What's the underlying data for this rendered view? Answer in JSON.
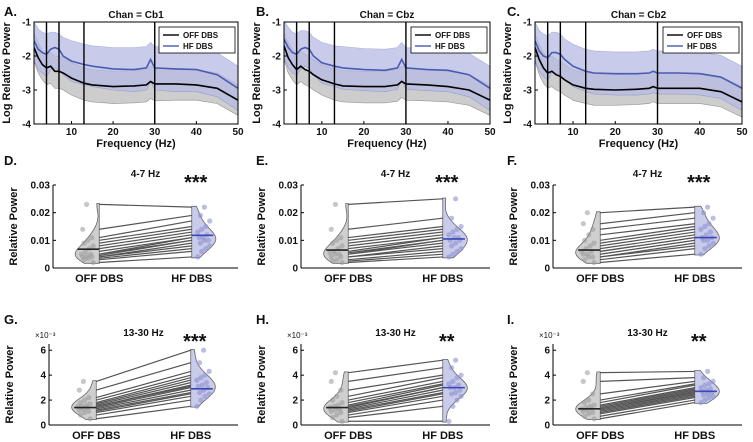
{
  "figure": {
    "panel_labels": [
      "A.",
      "B.",
      "C.",
      "D.",
      "E.",
      "F.",
      "G.",
      "H.",
      "I."
    ],
    "colors": {
      "off": "#000000",
      "hf": "#4a5bb0",
      "off_band": "#c8c8c8",
      "hf_band": "#b7b9e4",
      "off_violin": "#cfcfcf",
      "hf_violin": "#c9cbea",
      "pairline": "#555555"
    }
  },
  "chart_data": [
    {
      "panel": "A.",
      "type": "line",
      "title": "Chan = Cb1",
      "xlabel": "Frequency (Hz)",
      "ylabel": "Log Relative Power",
      "xlim": [
        1,
        50
      ],
      "ylim": [
        -4,
        -1
      ],
      "xticks": [
        10,
        20,
        30,
        40,
        50
      ],
      "yticks": [
        -1,
        -2,
        -3,
        -4
      ],
      "band_lines": [
        4,
        7,
        13,
        30
      ],
      "legend": [
        "OFF DBS",
        "HF DBS"
      ],
      "series": [
        {
          "name": "OFF DBS",
          "x": [
            1,
            2,
            3,
            4,
            5,
            6,
            7,
            8,
            10,
            13,
            15,
            20,
            25,
            28,
            29,
            30,
            35,
            40,
            45,
            50
          ],
          "mean": [
            -1.75,
            -2.05,
            -2.25,
            -2.35,
            -2.3,
            -2.45,
            -2.45,
            -2.5,
            -2.65,
            -2.8,
            -2.85,
            -2.9,
            -2.88,
            -2.85,
            -2.75,
            -2.82,
            -2.82,
            -2.85,
            -2.95,
            -3.3
          ],
          "upper": [
            -1.35,
            -1.6,
            -1.85,
            -1.95,
            -1.9,
            -2.0,
            -2.0,
            -2.05,
            -2.2,
            -2.35,
            -2.4,
            -2.45,
            -2.43,
            -2.4,
            -2.3,
            -2.35,
            -2.37,
            -2.4,
            -2.5,
            -2.85
          ],
          "lower": [
            -2.15,
            -2.5,
            -2.7,
            -2.85,
            -2.8,
            -2.95,
            -2.95,
            -3.0,
            -3.15,
            -3.3,
            -3.35,
            -3.4,
            -3.38,
            -3.35,
            -3.25,
            -3.32,
            -3.3,
            -3.3,
            -3.4,
            -3.75
          ]
        },
        {
          "name": "HF DBS",
          "x": [
            1,
            2,
            3,
            4,
            5,
            6,
            7,
            8,
            10,
            13,
            15,
            20,
            25,
            28,
            29,
            30,
            35,
            40,
            45,
            50
          ],
          "mean": [
            -1.55,
            -1.8,
            -1.9,
            -1.95,
            -1.8,
            -1.75,
            -1.8,
            -2.0,
            -2.15,
            -2.25,
            -2.3,
            -2.38,
            -2.4,
            -2.35,
            -2.1,
            -2.35,
            -2.38,
            -2.4,
            -2.55,
            -2.95
          ],
          "upper": [
            -1.0,
            -1.2,
            -1.3,
            -1.35,
            -1.3,
            -1.3,
            -1.35,
            -1.45,
            -1.55,
            -1.65,
            -1.7,
            -1.75,
            -1.75,
            -1.72,
            -1.6,
            -1.72,
            -1.72,
            -1.75,
            -1.9,
            -2.3
          ],
          "lower": [
            -2.1,
            -2.4,
            -2.5,
            -2.6,
            -2.4,
            -2.35,
            -2.4,
            -2.55,
            -2.75,
            -2.85,
            -2.9,
            -3.0,
            -3.05,
            -3.0,
            -2.75,
            -3.0,
            -3.05,
            -3.05,
            -3.2,
            -3.6
          ]
        }
      ]
    },
    {
      "panel": "B.",
      "type": "line",
      "title": "Chan = Cbz",
      "xlabel": "Frequency (Hz)",
      "ylabel": "Log Relative Power",
      "xlim": [
        1,
        50
      ],
      "ylim": [
        -4,
        -1
      ],
      "xticks": [
        10,
        20,
        30,
        40,
        50
      ],
      "yticks": [
        -1,
        -2,
        -3,
        -4
      ],
      "band_lines": [
        4,
        7,
        13,
        30
      ],
      "legend": [
        "OFF DBS",
        "HF DBS"
      ],
      "series": [
        {
          "name": "OFF DBS",
          "x": [
            1,
            2,
            3,
            4,
            5,
            6,
            7,
            8,
            10,
            13,
            15,
            20,
            25,
            28,
            29,
            30,
            35,
            40,
            45,
            50
          ],
          "mean": [
            -1.7,
            -2.05,
            -2.25,
            -2.4,
            -2.3,
            -2.4,
            -2.45,
            -2.55,
            -2.7,
            -2.82,
            -2.88,
            -2.9,
            -2.9,
            -2.85,
            -2.75,
            -2.82,
            -2.85,
            -2.9,
            -3.0,
            -3.3
          ],
          "upper": [
            -1.3,
            -1.6,
            -1.8,
            -1.95,
            -1.85,
            -1.95,
            -2.0,
            -2.1,
            -2.25,
            -2.37,
            -2.43,
            -2.45,
            -2.45,
            -2.4,
            -2.3,
            -2.37,
            -2.4,
            -2.45,
            -2.55,
            -2.85
          ],
          "lower": [
            -2.1,
            -2.5,
            -2.7,
            -2.85,
            -2.75,
            -2.85,
            -2.9,
            -3.0,
            -3.15,
            -3.3,
            -3.35,
            -3.38,
            -3.38,
            -3.33,
            -3.22,
            -3.3,
            -3.32,
            -3.35,
            -3.45,
            -3.75
          ]
        },
        {
          "name": "HF DBS",
          "x": [
            1,
            2,
            3,
            4,
            5,
            6,
            7,
            8,
            10,
            13,
            15,
            20,
            25,
            28,
            29,
            30,
            35,
            40,
            45,
            50
          ],
          "mean": [
            -1.5,
            -1.75,
            -1.9,
            -1.95,
            -1.8,
            -1.75,
            -1.8,
            -2.0,
            -2.2,
            -2.3,
            -2.35,
            -2.4,
            -2.42,
            -2.35,
            -2.1,
            -2.35,
            -2.4,
            -2.42,
            -2.55,
            -2.95
          ],
          "upper": [
            -0.95,
            -1.15,
            -1.3,
            -1.35,
            -1.25,
            -1.25,
            -1.3,
            -1.45,
            -1.6,
            -1.7,
            -1.72,
            -1.78,
            -1.8,
            -1.75,
            -1.6,
            -1.75,
            -1.78,
            -1.8,
            -1.92,
            -2.3
          ],
          "lower": [
            -2.05,
            -2.35,
            -2.5,
            -2.55,
            -2.4,
            -2.3,
            -2.35,
            -2.55,
            -2.8,
            -2.9,
            -2.98,
            -3.02,
            -3.05,
            -2.98,
            -2.7,
            -2.98,
            -3.02,
            -3.05,
            -3.2,
            -3.6
          ]
        }
      ]
    },
    {
      "panel": "C.",
      "type": "line",
      "title": "Chan = Cb2",
      "xlabel": "Frequency (Hz)",
      "ylabel": "Log Relative Power",
      "xlim": [
        1,
        50
      ],
      "ylim": [
        -4,
        -1
      ],
      "xticks": [
        10,
        20,
        30,
        40,
        50
      ],
      "yticks": [
        -1,
        -2,
        -3,
        -4
      ],
      "band_lines": [
        4,
        7,
        13,
        30
      ],
      "legend": [
        "OFF DBS",
        "HF DBS"
      ],
      "series": [
        {
          "name": "OFF DBS",
          "x": [
            1,
            2,
            3,
            4,
            5,
            6,
            7,
            8,
            10,
            13,
            15,
            20,
            25,
            28,
            29,
            30,
            35,
            40,
            45,
            50
          ],
          "mean": [
            -1.75,
            -2.1,
            -2.35,
            -2.5,
            -2.45,
            -2.55,
            -2.6,
            -2.7,
            -2.85,
            -2.95,
            -2.98,
            -3.0,
            -2.98,
            -2.95,
            -2.9,
            -2.95,
            -2.95,
            -2.95,
            -3.05,
            -3.35
          ],
          "upper": [
            -1.35,
            -1.65,
            -1.9,
            -2.05,
            -2.0,
            -2.1,
            -2.15,
            -2.25,
            -2.4,
            -2.5,
            -2.52,
            -2.55,
            -2.53,
            -2.5,
            -2.45,
            -2.5,
            -2.5,
            -2.5,
            -2.6,
            -2.9
          ],
          "lower": [
            -2.15,
            -2.55,
            -2.8,
            -2.95,
            -2.9,
            -3.0,
            -3.05,
            -3.15,
            -3.3,
            -3.4,
            -3.45,
            -3.45,
            -3.43,
            -3.4,
            -3.35,
            -3.4,
            -3.4,
            -3.4,
            -3.5,
            -3.8
          ]
        },
        {
          "name": "HF DBS",
          "x": [
            1,
            2,
            3,
            4,
            5,
            6,
            7,
            8,
            10,
            13,
            15,
            20,
            25,
            28,
            29,
            30,
            35,
            40,
            45,
            50
          ],
          "mean": [
            -1.55,
            -1.85,
            -2.0,
            -2.05,
            -1.9,
            -1.9,
            -1.95,
            -2.1,
            -2.3,
            -2.45,
            -2.5,
            -2.52,
            -2.52,
            -2.5,
            -2.45,
            -2.5,
            -2.5,
            -2.52,
            -2.62,
            -2.95
          ],
          "upper": [
            -1.0,
            -1.25,
            -1.35,
            -1.4,
            -1.3,
            -1.3,
            -1.35,
            -1.5,
            -1.65,
            -1.8,
            -1.85,
            -1.88,
            -1.88,
            -1.85,
            -1.8,
            -1.85,
            -1.85,
            -1.88,
            -1.98,
            -2.3
          ],
          "lower": [
            -2.1,
            -2.45,
            -2.6,
            -2.7,
            -2.5,
            -2.5,
            -2.55,
            -2.7,
            -2.9,
            -3.05,
            -3.12,
            -3.15,
            -3.15,
            -3.12,
            -3.08,
            -3.12,
            -3.12,
            -3.15,
            -3.25,
            -3.6
          ]
        }
      ]
    },
    {
      "panel": "D.",
      "type": "violin",
      "title": "4-7 Hz",
      "ylabel": "Relative Power",
      "categories": [
        "OFF DBS",
        "HF DBS"
      ],
      "ylim": [
        0,
        0.03
      ],
      "yticks": [
        0,
        0.01,
        0.02,
        0.03
      ],
      "ytick_labels": [
        "0",
        "0.01",
        "0.02",
        "0.03"
      ],
      "exponent": "",
      "significance": "***",
      "off": [
        0.002,
        0.003,
        0.0035,
        0.004,
        0.004,
        0.0045,
        0.005,
        0.005,
        0.006,
        0.007,
        0.008,
        0.009,
        0.01,
        0.011,
        0.014,
        0.023
      ],
      "hf": [
        0.004,
        0.006,
        0.007,
        0.008,
        0.009,
        0.01,
        0.01,
        0.011,
        0.011,
        0.012,
        0.013,
        0.014,
        0.015,
        0.017,
        0.019,
        0.022
      ],
      "off_mean": 0.0068,
      "hf_mean": 0.0118
    },
    {
      "panel": "E.",
      "type": "violin",
      "title": "4-7 Hz",
      "ylabel": "Relative Power",
      "categories": [
        "OFF DBS",
        "HF DBS"
      ],
      "ylim": [
        0,
        0.03
      ],
      "yticks": [
        0,
        0.01,
        0.02,
        0.03
      ],
      "ytick_labels": [
        "0",
        "0.01",
        "0.02",
        "0.03"
      ],
      "exponent": "",
      "significance": "***",
      "off": [
        0.002,
        0.0025,
        0.003,
        0.004,
        0.004,
        0.005,
        0.005,
        0.0055,
        0.006,
        0.007,
        0.008,
        0.009,
        0.01,
        0.011,
        0.014,
        0.023
      ],
      "hf": [
        0.004,
        0.005,
        0.006,
        0.007,
        0.008,
        0.009,
        0.01,
        0.01,
        0.011,
        0.011,
        0.012,
        0.013,
        0.014,
        0.015,
        0.018,
        0.025
      ],
      "off_mean": 0.0065,
      "hf_mean": 0.0105
    },
    {
      "panel": "F.",
      "type": "violin",
      "title": "4-7 Hz",
      "ylabel": "Relative Power",
      "categories": [
        "OFF DBS",
        "HF DBS"
      ],
      "ylim": [
        0,
        0.03
      ],
      "yticks": [
        0,
        0.01,
        0.02,
        0.03
      ],
      "ytick_labels": [
        "0",
        "0.01",
        "0.02",
        "0.03"
      ],
      "exponent": "",
      "significance": "***",
      "off": [
        0.002,
        0.003,
        0.004,
        0.004,
        0.005,
        0.005,
        0.006,
        0.006,
        0.007,
        0.008,
        0.009,
        0.01,
        0.012,
        0.014,
        0.016,
        0.02
      ],
      "hf": [
        0.005,
        0.007,
        0.008,
        0.009,
        0.01,
        0.01,
        0.011,
        0.011,
        0.012,
        0.013,
        0.014,
        0.015,
        0.016,
        0.018,
        0.02,
        0.022
      ],
      "off_mean": 0.0065,
      "hf_mean": 0.011
    },
    {
      "panel": "G.",
      "type": "violin",
      "title": "13-30 Hz",
      "ylabel": "Relative Power",
      "categories": [
        "OFF DBS",
        "HF DBS"
      ],
      "ylim": [
        0,
        6.5
      ],
      "yticks": [
        0,
        2,
        4,
        6
      ],
      "ytick_labels": [
        "0",
        "2",
        "4",
        "6"
      ],
      "exponent": "×10⁻³",
      "significance": "***",
      "off": [
        0.5,
        0.8,
        1.0,
        1.1,
        1.2,
        1.3,
        1.4,
        1.5,
        1.5,
        1.6,
        1.7,
        1.8,
        2.0,
        2.2,
        2.8,
        3.5
      ],
      "hf": [
        1.5,
        2.0,
        2.3,
        2.5,
        2.6,
        2.8,
        3.0,
        3.1,
        3.2,
        3.4,
        3.6,
        3.8,
        4.0,
        4.3,
        5.0,
        6.0
      ],
      "off_mean": 1.4,
      "hf_mean": 2.9
    },
    {
      "panel": "H.",
      "type": "violin",
      "title": "13-30 Hz",
      "ylabel": "Relative Power",
      "categories": [
        "OFF DBS",
        "HF DBS"
      ],
      "ylim": [
        0,
        6.5
      ],
      "yticks": [
        0,
        2,
        4,
        6
      ],
      "ytick_labels": [
        "0",
        "2",
        "4",
        "6"
      ],
      "exponent": "×10⁻³",
      "significance": "**",
      "off": [
        0.3,
        0.6,
        0.8,
        1.0,
        1.1,
        1.2,
        1.3,
        1.4,
        1.5,
        1.6,
        1.8,
        2.0,
        2.3,
        2.8,
        3.5,
        4.2
      ],
      "hf": [
        0.3,
        1.5,
        2.0,
        2.3,
        2.5,
        2.6,
        2.8,
        3.0,
        3.0,
        3.2,
        3.3,
        3.5,
        3.8,
        4.0,
        4.6,
        5.2
      ],
      "off_mean": 1.4,
      "hf_mean": 3.0
    },
    {
      "panel": "I.",
      "type": "violin",
      "title": "13-30 Hz",
      "ylabel": "Relative Power",
      "categories": [
        "OFF DBS",
        "HF DBS"
      ],
      "ylim": [
        0,
        6.5
      ],
      "yticks": [
        0,
        2,
        4,
        6
      ],
      "ytick_labels": [
        "0",
        "2",
        "4",
        "6"
      ],
      "exponent": "×10⁻³",
      "significance": "**",
      "off": [
        0.5,
        0.7,
        0.9,
        1.0,
        1.1,
        1.2,
        1.3,
        1.3,
        1.4,
        1.5,
        1.6,
        1.8,
        2.0,
        2.5,
        3.5,
        4.2
      ],
      "hf": [
        1.8,
        2.0,
        2.2,
        2.3,
        2.4,
        2.5,
        2.6,
        2.7,
        2.8,
        2.9,
        3.0,
        3.2,
        3.3,
        3.5,
        3.8,
        4.3
      ],
      "off_mean": 1.3,
      "hf_mean": 2.7
    }
  ]
}
